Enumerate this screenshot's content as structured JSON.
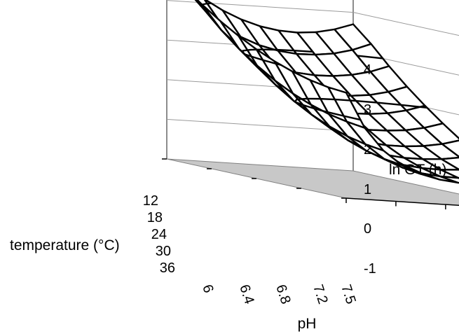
{
  "chart_data": {
    "type": "surface3d",
    "title": "",
    "xlabel": "pH",
    "ylabel": "temperature (°C)",
    "zlabel": "ln GT (h)",
    "xlim": [
      6,
      7.5
    ],
    "ylim": [
      12,
      36
    ],
    "zlim": [
      -1,
      4
    ],
    "x_ticks": [
      "6",
      "6.4",
      "6.8",
      "7.2",
      "7.5"
    ],
    "y_ticks": [
      "12",
      "18",
      "24",
      "30",
      "36"
    ],
    "z_ticks": [
      "-1",
      "0",
      "1",
      "2",
      "3",
      "4"
    ],
    "grid": true,
    "floor_color": "#c8c8c8",
    "x": [
      6,
      6.15,
      6.3,
      6.45,
      6.6,
      6.75,
      6.9,
      7.05,
      7.2,
      7.35,
      7.5
    ],
    "y": [
      12,
      14.4,
      16.8,
      19.2,
      21.6,
      24,
      26.4,
      28.8,
      31.2,
      33.6,
      36
    ],
    "z": [
      [
        3.8,
        3.42,
        3.1,
        2.84,
        2.64,
        2.5,
        2.42,
        2.4,
        2.44,
        2.54,
        2.7
      ],
      [
        3.42,
        2.92,
        2.54,
        2.27,
        2.09,
        1.98,
        1.93,
        1.94,
        2.0,
        2.12,
        2.3
      ],
      [
        3.08,
        2.48,
        2.06,
        1.79,
        1.63,
        1.53,
        1.49,
        1.5,
        1.56,
        1.67,
        1.84
      ],
      [
        2.77,
        2.1,
        1.66,
        1.39,
        1.23,
        1.13,
        1.09,
        1.1,
        1.15,
        1.26,
        1.42
      ],
      [
        2.5,
        1.78,
        1.32,
        1.04,
        0.87,
        0.77,
        0.73,
        0.74,
        0.79,
        0.89,
        1.04
      ],
      [
        2.26,
        1.5,
        1.02,
        0.72,
        0.55,
        0.45,
        0.41,
        0.42,
        0.46,
        0.55,
        0.69
      ],
      [
        2.06,
        1.27,
        0.77,
        0.46,
        0.28,
        0.17,
        0.12,
        0.12,
        0.16,
        0.24,
        0.37
      ],
      [
        1.9,
        1.09,
        0.57,
        0.25,
        0.06,
        -0.05,
        -0.1,
        -0.1,
        -0.07,
        0.0,
        0.11
      ],
      [
        1.78,
        0.95,
        0.42,
        0.09,
        -0.1,
        -0.21,
        -0.26,
        -0.27,
        -0.24,
        -0.17,
        -0.07
      ],
      [
        1.7,
        0.86,
        0.32,
        -0.02,
        -0.21,
        -0.32,
        -0.37,
        -0.38,
        -0.36,
        -0.3,
        -0.21
      ],
      [
        1.66,
        0.8,
        0.26,
        -0.08,
        -0.27,
        -0.38,
        -0.43,
        -0.44,
        -0.43,
        -0.38,
        -0.3
      ]
    ],
    "contour_levels": [
      1,
      2,
      3
    ]
  }
}
